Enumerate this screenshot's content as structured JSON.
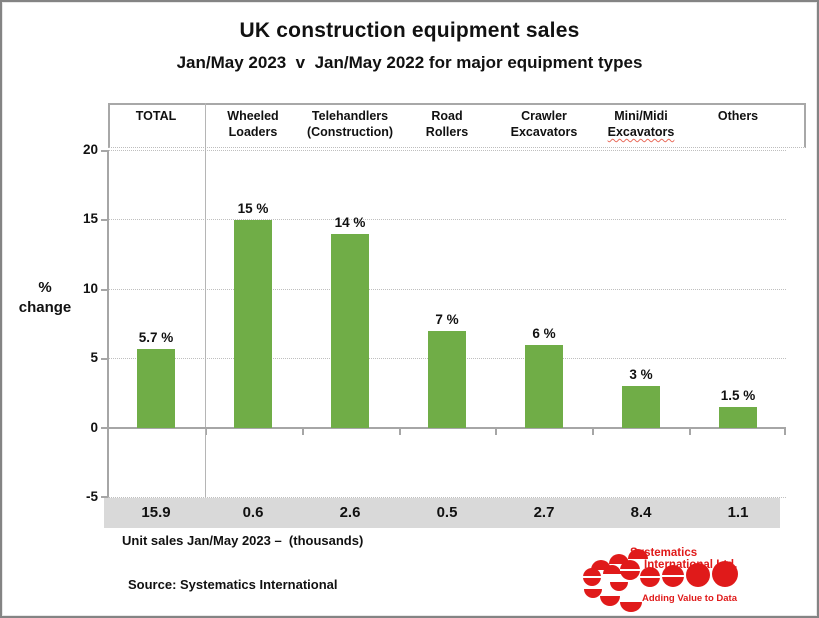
{
  "window": {
    "background": "#ffffff",
    "border_color": "#848484"
  },
  "title": "UK construction equipment sales",
  "subtitle": "Jan/May 2023  v  Jan/May 2022 for major equipment types",
  "y_axis": {
    "label_line1": "%",
    "label_line2": "change",
    "ticks": [
      "20",
      "15",
      "10",
      "5",
      "0",
      "-5"
    ]
  },
  "chart_data": {
    "type": "bar",
    "title": "UK construction equipment sales",
    "subtitle": "Jan/May 2023 v Jan/May 2022 for major equipment types",
    "categories": [
      "TOTAL",
      "Wheeled Loaders",
      "Telehandlers (Construction)",
      "Road Rollers",
      "Crawler Excavators",
      "Mini/Midi Excavators",
      "Others"
    ],
    "values": [
      5.7,
      15,
      14,
      7,
      6,
      3,
      1.5
    ],
    "value_labels": [
      "5.7 %",
      "15 %",
      "14 %",
      "7 %",
      "6 %",
      "3 %",
      "1.5 %"
    ],
    "unit_sales_thousands": [
      15.9,
      0.6,
      2.6,
      0.5,
      2.7,
      8.4,
      1.1
    ],
    "ylabel": "% change",
    "ylim": [
      -5,
      20
    ],
    "yticks": [
      20,
      15,
      10,
      5,
      0,
      -5
    ],
    "bar_color": "#70AD47",
    "grid": "horizontal-dotted",
    "legend": "none"
  },
  "columns": [
    {
      "header_line1": "TOTAL",
      "header_line2": "",
      "value_label": "5.7 %",
      "unit_sales": "15.9"
    },
    {
      "header_line1": "Wheeled",
      "header_line2": "Loaders",
      "value_label": "15 %",
      "unit_sales": "0.6"
    },
    {
      "header_line1": "Telehandlers",
      "header_line2": "(Construction)",
      "value_label": "14 %",
      "unit_sales": "2.6"
    },
    {
      "header_line1": "Road",
      "header_line2": "Rollers",
      "value_label": "7 %",
      "unit_sales": "0.5"
    },
    {
      "header_line1": "Crawler",
      "header_line2": "Excavators",
      "value_label": "6 %",
      "unit_sales": "2.7"
    },
    {
      "header_line1": "Mini/Midi",
      "header_line2": "Excavators",
      "value_label": "3 %",
      "unit_sales": "8.4"
    },
    {
      "header_line1": "Others",
      "header_line2": "",
      "value_label": "1.5 %",
      "unit_sales": "1.1"
    }
  ],
  "footer": {
    "unit_sales_caption": "Unit sales Jan/May 2023 –  (thousands)",
    "source": "Source: Systematics International"
  },
  "logo": {
    "name_line1": "Systematics",
    "name_line2": "International Ltd.",
    "tagline": "Adding Value to Data",
    "color": "#E01A1A"
  }
}
